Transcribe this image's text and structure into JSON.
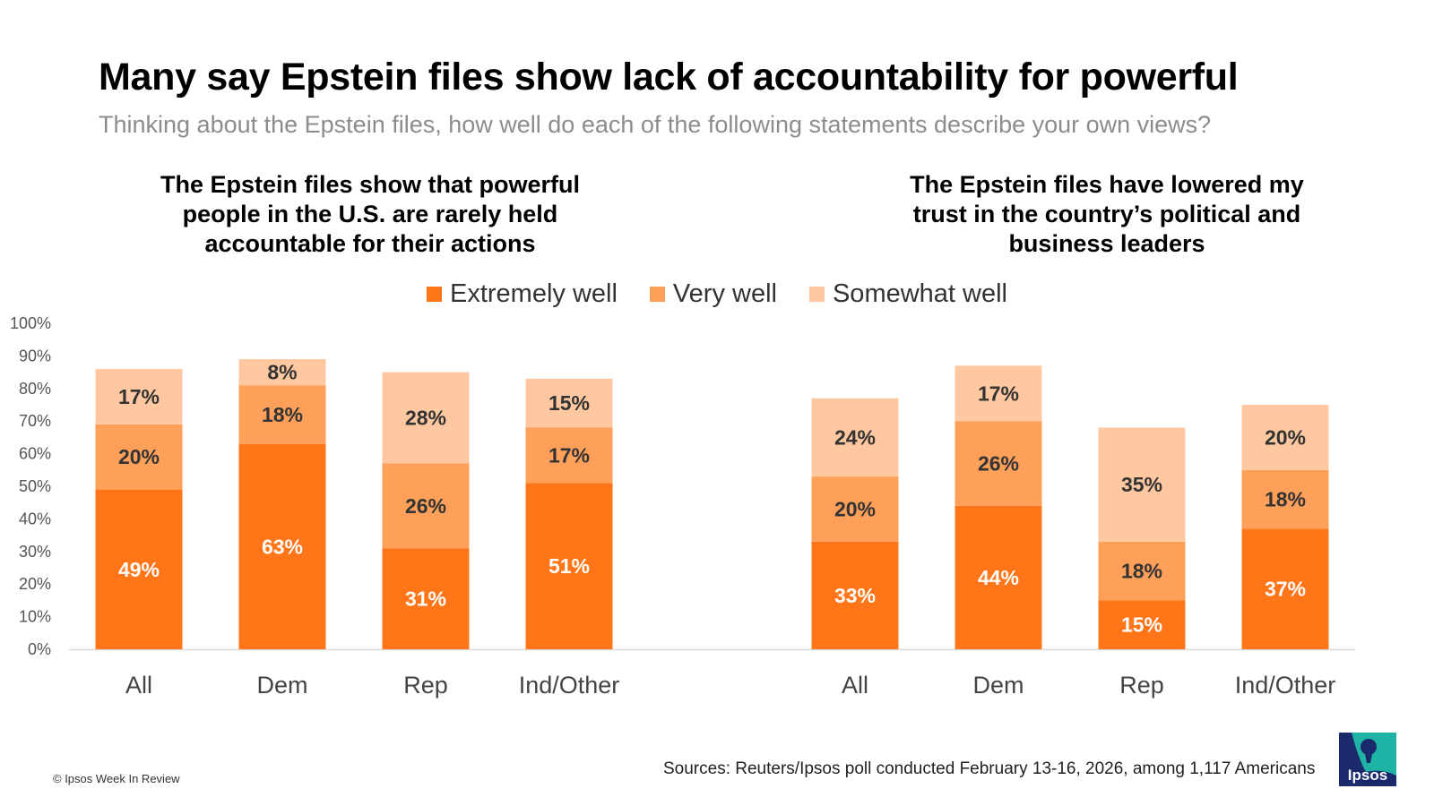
{
  "title": "Many say Epstein files show lack of accountability for powerful",
  "subtitle": "Thinking about the Epstein files, how well do each of the following statements describe your own views?",
  "panels": [
    {
      "title_lines": [
        "The Epstein files show that powerful",
        "people in the U.S. are rarely held",
        "accountable for their actions"
      ]
    },
    {
      "title_lines": [
        "The Epstein files have lowered my",
        "trust in the country’s political and",
        "business leaders"
      ]
    }
  ],
  "legend": [
    "Extremely well",
    "Very well",
    "Somewhat well"
  ],
  "colors": {
    "extremely": "#ff7518",
    "very": "#ffa05a",
    "somewhat": "#ffc8a0",
    "axis": "#d9d9d9",
    "tick_text": "#555555",
    "label_dark": "#333333"
  },
  "chart_data": {
    "type": "bar",
    "stacked": true,
    "ylim": [
      0,
      100
    ],
    "yticks": [
      "0%",
      "10%",
      "20%",
      "30%",
      "40%",
      "50%",
      "60%",
      "70%",
      "80%",
      "90%",
      "100%"
    ],
    "series_names": [
      "Extremely well",
      "Very well",
      "Somewhat well"
    ],
    "groups": [
      {
        "panel": 0,
        "categories": [
          "All",
          "Dem",
          "Rep",
          "Ind/Other"
        ],
        "series": [
          {
            "name": "Extremely well",
            "values": [
              49,
              63,
              31,
              51
            ],
            "labels": [
              "49%",
              "63%",
              "31%",
              "51%"
            ]
          },
          {
            "name": "Very well",
            "values": [
              20,
              18,
              26,
              17
            ],
            "labels": [
              "20%",
              "18%",
              "26%",
              "17%"
            ]
          },
          {
            "name": "Somewhat well",
            "values": [
              17,
              8,
              28,
              15
            ],
            "labels": [
              "17%",
              "8%",
              "28%",
              "15%"
            ]
          }
        ]
      },
      {
        "panel": 1,
        "categories": [
          "All",
          "Dem",
          "Rep",
          "Ind/Other"
        ],
        "series": [
          {
            "name": "Extremely well",
            "values": [
              33,
              44,
              15,
              37
            ],
            "labels": [
              "33%",
              "44%",
              "15%",
              "37%"
            ]
          },
          {
            "name": "Very well",
            "values": [
              20,
              26,
              18,
              18
            ],
            "labels": [
              "20%",
              "26%",
              "18%",
              "18%"
            ]
          },
          {
            "name": "Somewhat well",
            "values": [
              24,
              17,
              35,
              20
            ],
            "labels": [
              "24%",
              "17%",
              "35%",
              "20%"
            ]
          }
        ]
      }
    ]
  },
  "footer": {
    "copyright": "© Ipsos Week In Review",
    "sources": "Sources: Reuters/Ipsos poll conducted February 13-16, 2026, among 1,117 Americans",
    "logo_text": "Ipsos"
  }
}
